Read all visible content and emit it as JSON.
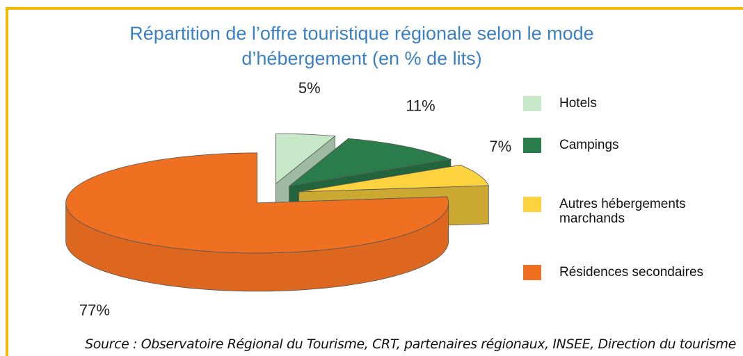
{
  "chart_data": {
    "type": "pie",
    "title": "Répartition de l’offre touristique régionale selon le mode d’hébergement (en % de lits)",
    "categories": [
      "Hotels",
      "Campings",
      "Autres hébergements marchands",
      "Résidences secondaires"
    ],
    "values": [
      5,
      11,
      7,
      77
    ],
    "value_labels": [
      "5%",
      "11%",
      "7%",
      "77%"
    ],
    "colors": [
      "#c6e8c9",
      "#2a7d4a",
      "#fcd23e",
      "#f07022"
    ],
    "source": "Source : Observatoire Régional du Tourisme, CRT, partenaires régionaux, INSEE, Direction du tourisme"
  }
}
